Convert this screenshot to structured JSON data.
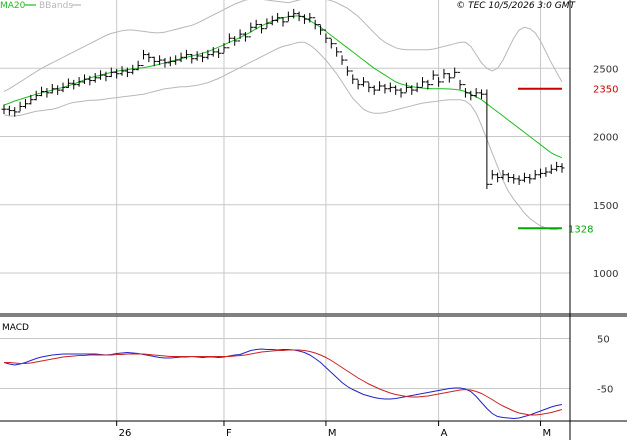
{
  "legend": {
    "ma_label": "MA20",
    "bb_label": "BBands"
  },
  "header": {
    "stamp": "© TEC 10/5/2026 3:0 GMT"
  },
  "colors": {
    "price": "#000000",
    "ma20": "#22bb22",
    "bbands": "#b8b8b8",
    "resistance": "#cc0000",
    "support": "#00aa00",
    "macd": "#2222cc",
    "signal": "#cc2222",
    "grid": "#c8c8c8",
    "text": "#333333"
  },
  "chart_data": [
    {
      "type": "line",
      "panel": "price",
      "price_axis": {
        "min": 700,
        "max": 3000,
        "ticks": [
          1000,
          1500,
          2000,
          2500
        ]
      },
      "x_axis": {
        "sessions": 105,
        "labels": [
          {
            "text": "26",
            "session": 21
          },
          {
            "text": "F",
            "session": 41
          },
          {
            "text": "M",
            "session": 60
          },
          {
            "text": "A",
            "session": 81
          },
          {
            "text": "M",
            "session": 100
          }
        ]
      },
      "levels": [
        {
          "name": "resistance",
          "value": 2350,
          "label": "2350"
        },
        {
          "name": "support",
          "value": 1328,
          "label": "1328"
        }
      ],
      "series": [
        {
          "name": "MA20",
          "type": "line",
          "values": [
            2230,
            2245,
            2260,
            2272,
            2285,
            2297,
            2310,
            2320,
            2330,
            2340,
            2350,
            2360,
            2372,
            2385,
            2400,
            2415,
            2430,
            2440,
            2450,
            2460,
            2470,
            2478,
            2485,
            2490,
            2495,
            2500,
            2505,
            2512,
            2520,
            2530,
            2540,
            2550,
            2560,
            2570,
            2580,
            2590,
            2600,
            2610,
            2622,
            2638,
            2655,
            2672,
            2690,
            2708,
            2725,
            2745,
            2765,
            2790,
            2810,
            2830,
            2845,
            2860,
            2870,
            2878,
            2882,
            2885,
            2870,
            2850,
            2825,
            2800,
            2770,
            2740,
            2710,
            2680,
            2650,
            2620,
            2590,
            2560,
            2530,
            2500,
            2475,
            2450,
            2425,
            2400,
            2385,
            2375,
            2365,
            2360,
            2355,
            2352,
            2350,
            2350,
            2350,
            2348,
            2345,
            2340,
            2330,
            2310,
            2290,
            2270,
            2240,
            2210,
            2180,
            2150,
            2120,
            2090,
            2060,
            2030,
            2000,
            1970,
            1940,
            1910,
            1880,
            1860,
            1845
          ]
        },
        {
          "name": "BBands upper",
          "type": "line",
          "values": [
            2330,
            2350,
            2375,
            2400,
            2425,
            2450,
            2475,
            2500,
            2520,
            2540,
            2560,
            2580,
            2600,
            2620,
            2640,
            2660,
            2680,
            2700,
            2720,
            2740,
            2755,
            2765,
            2775,
            2780,
            2780,
            2775,
            2770,
            2765,
            2760,
            2760,
            2765,
            2775,
            2785,
            2795,
            2805,
            2815,
            2830,
            2850,
            2870,
            2890,
            2910,
            2930,
            2950,
            2970,
            2985,
            3000,
            3005,
            3010,
            3005,
            3000,
            2995,
            2990,
            2985,
            2980,
            2990,
            3000,
            3010,
            3010,
            3010,
            3010,
            3005,
            2995,
            2980,
            2960,
            2940,
            2910,
            2880,
            2840,
            2800,
            2760,
            2720,
            2690,
            2670,
            2650,
            2640,
            2635,
            2635,
            2635,
            2635,
            2635,
            2640,
            2650,
            2660,
            2670,
            2680,
            2690,
            2690,
            2660,
            2600,
            2540,
            2500,
            2480,
            2500,
            2560,
            2640,
            2720,
            2780,
            2800,
            2790,
            2760,
            2700,
            2620,
            2540,
            2470,
            2400
          ]
        },
        {
          "name": "BBands lower",
          "type": "line",
          "values": [
            2160,
            2150,
            2150,
            2155,
            2165,
            2175,
            2185,
            2190,
            2195,
            2200,
            2210,
            2225,
            2240,
            2250,
            2255,
            2260,
            2265,
            2265,
            2270,
            2275,
            2280,
            2285,
            2290,
            2295,
            2300,
            2305,
            2310,
            2320,
            2330,
            2340,
            2350,
            2355,
            2360,
            2365,
            2365,
            2370,
            2375,
            2385,
            2395,
            2410,
            2425,
            2445,
            2465,
            2485,
            2505,
            2525,
            2545,
            2565,
            2585,
            2605,
            2625,
            2645,
            2660,
            2670,
            2680,
            2690,
            2690,
            2670,
            2640,
            2600,
            2560,
            2510,
            2460,
            2400,
            2340,
            2280,
            2240,
            2200,
            2180,
            2170,
            2170,
            2175,
            2185,
            2195,
            2205,
            2215,
            2225,
            2235,
            2245,
            2250,
            2255,
            2260,
            2265,
            2270,
            2270,
            2270,
            2260,
            2230,
            2170,
            2080,
            1980,
            1880,
            1780,
            1680,
            1600,
            1540,
            1490,
            1440,
            1400,
            1370,
            1345,
            1330,
            1320,
            1320,
            1330
          ]
        },
        {
          "name": "Price",
          "type": "hlc-bars",
          "values": [
            2200,
            2190,
            2180,
            2220,
            2240,
            2270,
            2300,
            2330,
            2320,
            2350,
            2340,
            2360,
            2390,
            2380,
            2400,
            2420,
            2410,
            2430,
            2450,
            2440,
            2470,
            2460,
            2480,
            2470,
            2490,
            2520,
            2600,
            2580,
            2550,
            2560,
            2540,
            2550,
            2560,
            2580,
            2600,
            2570,
            2590,
            2580,
            2600,
            2620,
            2610,
            2650,
            2720,
            2700,
            2750,
            2730,
            2800,
            2820,
            2790,
            2830,
            2850,
            2870,
            2840,
            2880,
            2900,
            2880,
            2860,
            2870,
            2820,
            2780,
            2720,
            2680,
            2620,
            2560,
            2480,
            2420,
            2380,
            2400,
            2360,
            2340,
            2370,
            2350,
            2360,
            2340,
            2320,
            2360,
            2340,
            2360,
            2400,
            2380,
            2450,
            2400,
            2460,
            2430,
            2470,
            2380,
            2320,
            2300,
            2320,
            2310,
            1650,
            1720,
            1700,
            1720,
            1700,
            1690,
            1680,
            1700,
            1690,
            1720,
            1730,
            1740,
            1760,
            1780,
            1770
          ]
        }
      ]
    },
    {
      "type": "line",
      "panel": "macd",
      "title": "MACD",
      "y_axis": {
        "min": -115,
        "max": 95,
        "ticks": [
          50,
          -50
        ],
        "tick_labels": [
          "50",
          "-50"
        ]
      },
      "series": [
        {
          "name": "MACD",
          "values": [
            2,
            -1,
            -3,
            -1,
            2,
            6,
            10,
            13,
            15,
            17,
            18,
            19,
            19,
            19,
            19,
            19,
            19,
            19,
            18,
            17,
            18,
            20,
            21,
            22,
            21,
            20,
            18,
            16,
            14,
            12,
            11,
            11,
            12,
            13,
            13,
            14,
            13,
            12,
            13,
            13,
            12,
            13,
            15,
            17,
            18,
            22,
            26,
            28,
            29,
            28,
            28,
            27,
            28,
            28,
            27,
            25,
            22,
            17,
            10,
            2,
            -8,
            -18,
            -28,
            -38,
            -46,
            -52,
            -57,
            -62,
            -65,
            -68,
            -70,
            -71,
            -71,
            -70,
            -68,
            -66,
            -64,
            -62,
            -60,
            -58,
            -56,
            -54,
            -52,
            -50,
            -49,
            -49,
            -51,
            -56,
            -66,
            -78,
            -90,
            -100,
            -106,
            -108,
            -109,
            -110,
            -109,
            -106,
            -103,
            -99,
            -95,
            -91,
            -87,
            -84,
            -82
          ]
        },
        {
          "name": "Signal",
          "values": [
            2,
            2,
            1,
            0,
            0,
            1,
            3,
            5,
            7,
            9,
            11,
            13,
            14,
            15,
            16,
            16,
            17,
            17,
            17,
            17,
            17,
            18,
            18,
            19,
            19,
            19,
            19,
            18,
            17,
            16,
            15,
            14,
            14,
            14,
            14,
            14,
            14,
            14,
            14,
            14,
            14,
            14,
            14,
            15,
            16,
            17,
            19,
            21,
            23,
            24,
            25,
            26,
            26,
            27,
            27,
            27,
            26,
            24,
            21,
            17,
            12,
            6,
            -1,
            -8,
            -15,
            -22,
            -29,
            -35,
            -41,
            -46,
            -51,
            -55,
            -59,
            -62,
            -64,
            -66,
            -67,
            -67,
            -66,
            -65,
            -63,
            -61,
            -59,
            -57,
            -55,
            -53,
            -52,
            -53,
            -56,
            -60,
            -66,
            -72,
            -79,
            -85,
            -90,
            -95,
            -99,
            -101,
            -103,
            -103,
            -102,
            -100,
            -98,
            -95,
            -92
          ]
        }
      ]
    }
  ]
}
